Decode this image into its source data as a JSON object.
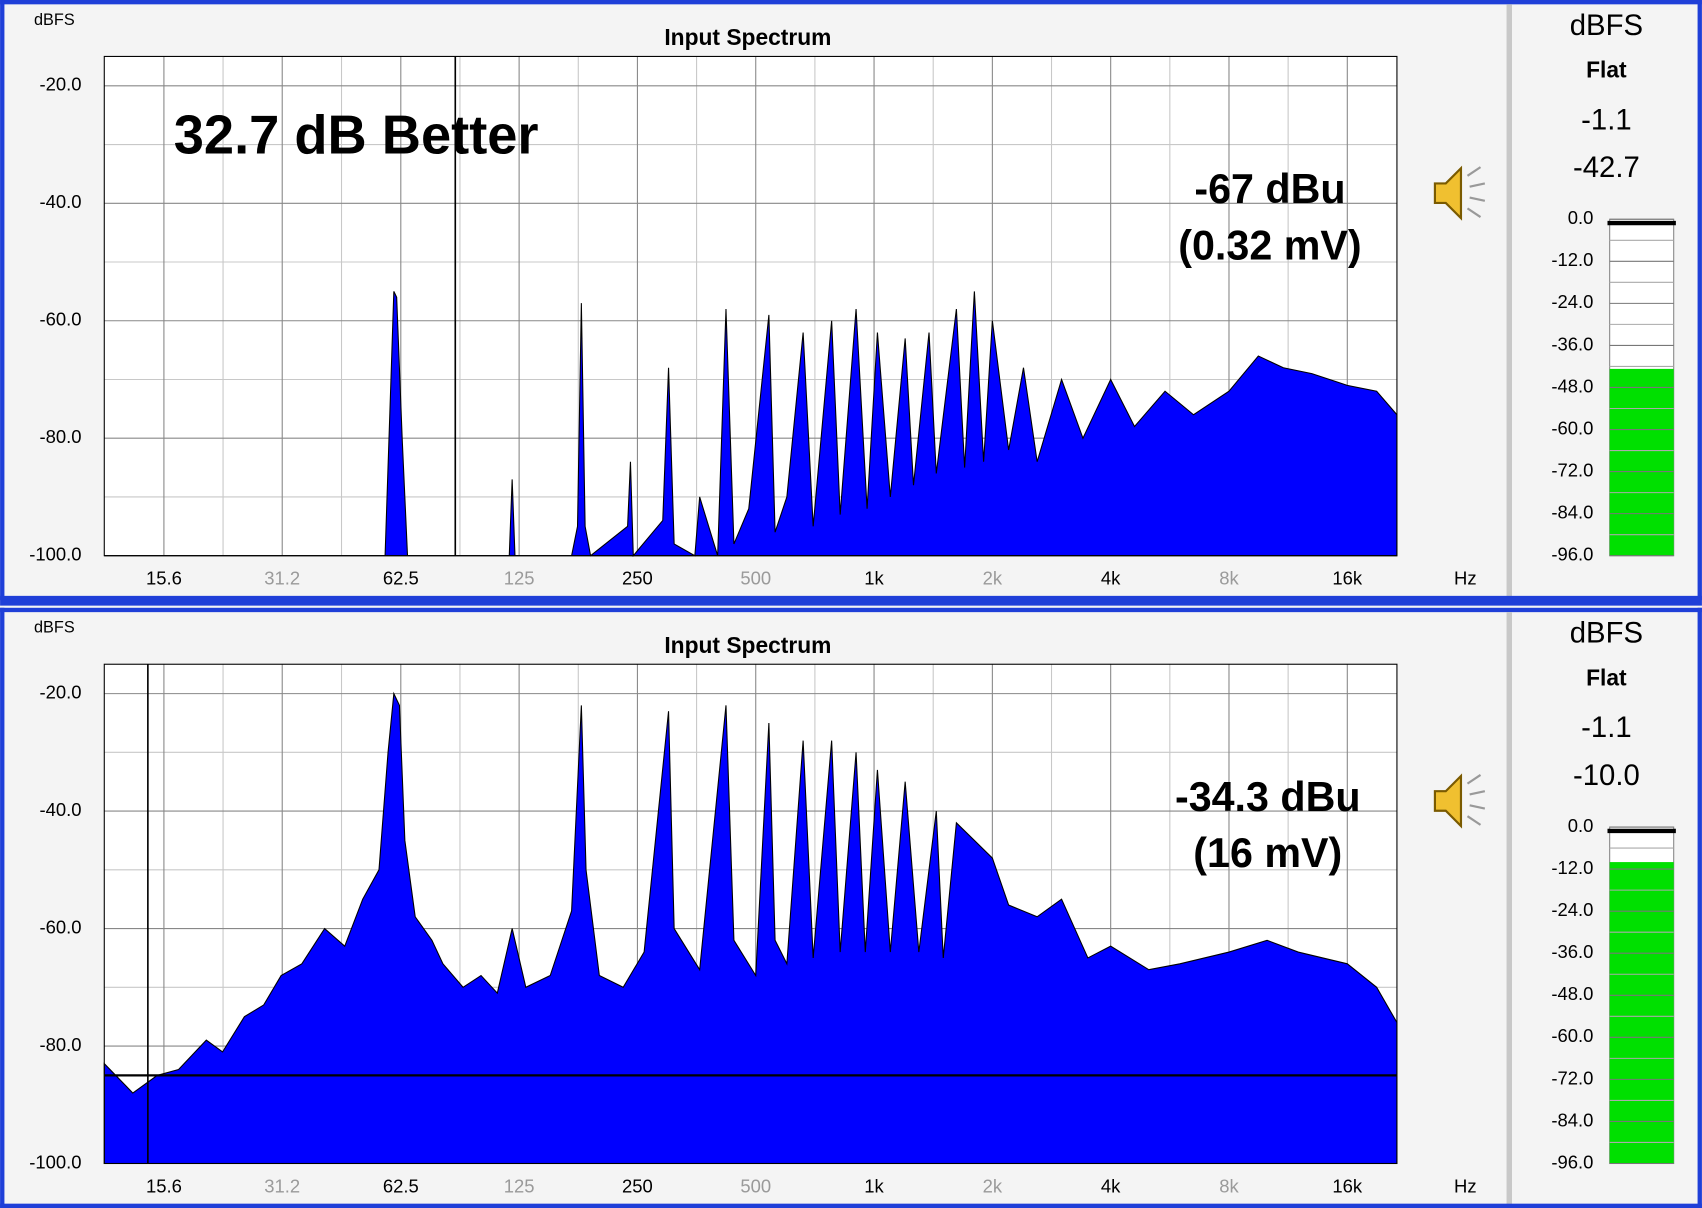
{
  "chart_data": [
    {
      "type": "area",
      "title": "Input Spectrum",
      "y_label": "dBFS",
      "x_unit": "Hz",
      "x_scale": "log",
      "color": "#0000ff",
      "grid": true,
      "minor_grid": true,
      "xlim": [
        11,
        21400
      ],
      "ylim": [
        -100,
        -15
      ],
      "xticks": [
        15.6,
        31.2,
        62.5,
        125,
        250,
        500,
        {
          "value": 1000,
          "label": "1k"
        },
        {
          "value": 2000,
          "label": "2k"
        },
        {
          "value": 4000,
          "label": "4k"
        },
        {
          "value": 8000,
          "label": "8k"
        },
        {
          "value": 16000,
          "label": "16k"
        }
      ],
      "yticks": [
        {
          "value": -100,
          "label": "-100.0"
        },
        {
          "value": -80,
          "label": "-80.0"
        },
        {
          "value": -60,
          "label": "-60.0"
        },
        {
          "value": -40,
          "label": "-40.0"
        },
        {
          "value": -20,
          "label": "-20.0"
        }
      ],
      "cursor_x": 86,
      "annotations": [
        "32.7 dB Better",
        "-67 dBu",
        "(0.32 mV)"
      ],
      "x": [
        11,
        57,
        59,
        60,
        61,
        63,
        65,
        118,
        120,
        122,
        170,
        176,
        180,
        184,
        190,
        236,
        240,
        244,
        290,
        300,
        310,
        350,
        360,
        400,
        420,
        440,
        480,
        540,
        560,
        600,
        660,
        700,
        780,
        820,
        900,
        960,
        1020,
        1100,
        1200,
        1260,
        1380,
        1440,
        1620,
        1700,
        1800,
        1900,
        2000,
        2200,
        2400,
        2600,
        3000,
        3400,
        4000,
        4600,
        5500,
        6500,
        8000,
        9500,
        11000,
        13000,
        16000,
        19000,
        21400
      ],
      "values": [
        -100,
        -100,
        -70,
        -55,
        -56,
        -80,
        -100,
        -100,
        -87,
        -100,
        -100,
        -95,
        -57,
        -95,
        -100,
        -95,
        -84,
        -100,
        -94,
        -68,
        -98,
        -100,
        -90,
        -100,
        -58,
        -98,
        -92,
        -59,
        -96,
        -90,
        -62,
        -95,
        -60,
        -93,
        -58,
        -92,
        -62,
        -90,
        -63,
        -88,
        -62,
        -86,
        -58,
        -85,
        -55,
        -84,
        -60,
        -82,
        -68,
        -84,
        -70,
        -80,
        -70,
        -78,
        -72,
        -76,
        -72,
        -66,
        -68,
        -69,
        -71,
        -72,
        -76
      ]
    },
    {
      "type": "area",
      "title": "Input Spectrum",
      "y_label": "dBFS",
      "x_unit": "Hz",
      "x_scale": "log",
      "color": "#0000ff",
      "grid": true,
      "minor_grid": true,
      "xlim": [
        11,
        21400
      ],
      "ylim": [
        -100,
        -15
      ],
      "xticks": [
        15.6,
        31.2,
        62.5,
        125,
        250,
        500,
        {
          "value": 1000,
          "label": "1k"
        },
        {
          "value": 2000,
          "label": "2k"
        },
        {
          "value": 4000,
          "label": "4k"
        },
        {
          "value": 8000,
          "label": "8k"
        },
        {
          "value": 16000,
          "label": "16k"
        }
      ],
      "yticks": [
        {
          "value": -100,
          "label": "-100.0"
        },
        {
          "value": -80,
          "label": "-80.0"
        },
        {
          "value": -60,
          "label": "-60.0"
        },
        {
          "value": -40,
          "label": "-40.0"
        },
        {
          "value": -20,
          "label": "-20.0"
        }
      ],
      "cursor_x": 14.2,
      "reference_level": -85,
      "annotations": [
        "-34.3 dBu",
        "(16 mV)"
      ],
      "x": [
        11,
        13,
        15,
        17,
        20,
        22,
        25,
        28,
        31,
        35,
        40,
        45,
        50,
        55,
        58,
        60,
        62,
        64,
        68,
        75,
        80,
        90,
        100,
        110,
        120,
        130,
        150,
        170,
        180,
        185,
        200,
        230,
        260,
        300,
        310,
        360,
        420,
        440,
        500,
        540,
        560,
        600,
        660,
        700,
        780,
        820,
        900,
        950,
        1020,
        1100,
        1200,
        1300,
        1440,
        1500,
        1620,
        1800,
        2000,
        2200,
        2600,
        3000,
        3500,
        4000,
        5000,
        6000,
        8000,
        10000,
        12000,
        16000,
        19000,
        21400
      ],
      "values": [
        -83,
        -88,
        -85,
        -84,
        -79,
        -81,
        -75,
        -73,
        -68,
        -66,
        -60,
        -63,
        -55,
        -50,
        -30,
        -20,
        -22,
        -45,
        -58,
        -62,
        -66,
        -70,
        -68,
        -71,
        -60,
        -70,
        -68,
        -57,
        -22,
        -50,
        -68,
        -70,
        -64,
        -23,
        -60,
        -67,
        -22,
        -62,
        -68,
        -25,
        -62,
        -66,
        -28,
        -65,
        -28,
        -64,
        -30,
        -64,
        -33,
        -64,
        -35,
        -64,
        -40,
        -65,
        -42,
        -45,
        -48,
        -56,
        -58,
        -55,
        -65,
        -63,
        -67,
        -66,
        -64,
        -62,
        -64,
        -66,
        -70,
        -76
      ]
    }
  ],
  "meters": [
    {
      "label": "dBFS",
      "weighting": "Flat",
      "peak": -1.1,
      "level": -42.7,
      "level_label": "-42.7",
      "color": "#00e000",
      "ylim": [
        -96,
        0
      ],
      "yticks": [
        {
          "value": 0,
          "label": "0.0"
        },
        {
          "value": -12,
          "label": "-12.0"
        },
        {
          "value": -24,
          "label": "-24.0"
        },
        {
          "value": -36,
          "label": "-36.0"
        },
        {
          "value": -48,
          "label": "-48.0"
        },
        {
          "value": -60,
          "label": "-60.0"
        },
        {
          "value": -72,
          "label": "-72.0"
        },
        {
          "value": -84,
          "label": "-84.0"
        },
        {
          "value": -96,
          "label": "-96.0"
        }
      ]
    },
    {
      "label": "dBFS",
      "weighting": "Flat",
      "peak": -1.1,
      "level": -10,
      "level_label": "-10.0",
      "color": "#00e000",
      "ylim": [
        -96,
        0
      ],
      "yticks": [
        {
          "value": 0,
          "label": "0.0"
        },
        {
          "value": -12,
          "label": "-12.0"
        },
        {
          "value": -24,
          "label": "-24.0"
        },
        {
          "value": -36,
          "label": "-36.0"
        },
        {
          "value": -48,
          "label": "-48.0"
        },
        {
          "value": -60,
          "label": "-60.0"
        },
        {
          "value": -72,
          "label": "-72.0"
        },
        {
          "value": -84,
          "label": "-84.0"
        },
        {
          "value": -96,
          "label": "-96.0"
        }
      ]
    }
  ]
}
